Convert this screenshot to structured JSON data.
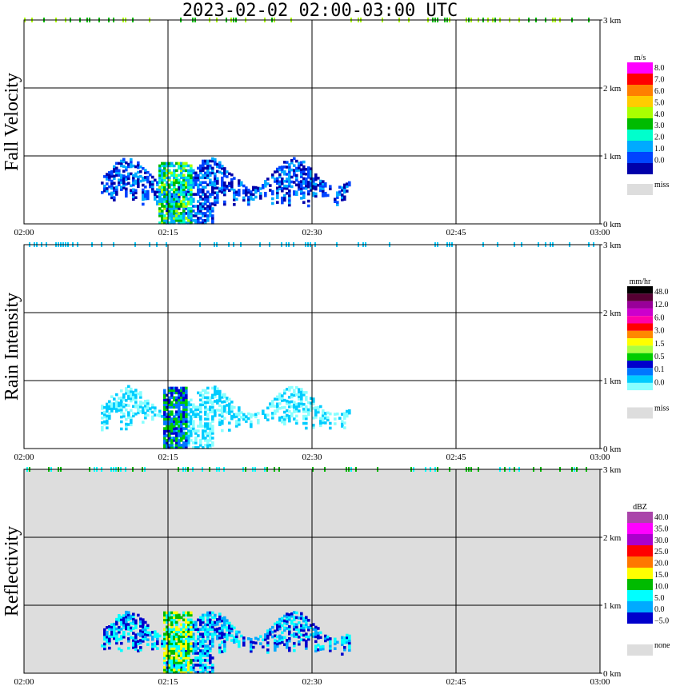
{
  "title": "2023-02-02   02:00-03:00 UTC",
  "colors": {
    "frame": "#000000",
    "missing": "#dddddd"
  },
  "chart_data": [
    {
      "type": "heatmap",
      "title": "",
      "ylabel": "Fall Velocity",
      "x_ticks": [
        "02:00",
        "02:15",
        "02:30",
        "02:45",
        "03:00"
      ],
      "x_range_min": [
        0,
        60
      ],
      "y_ticks": [
        "0 km",
        "1 km",
        "2 km",
        "3 km"
      ],
      "y_range_km": [
        0,
        3
      ],
      "grid": true,
      "background": "white",
      "legend": {
        "unit": "m/s",
        "labels": [
          "8.0",
          "7.0",
          "6.0",
          "5.0",
          "4.0",
          "3.0",
          "2.0",
          "1.0",
          "0.0"
        ],
        "colors": [
          "#ff00ff",
          "#ff0000",
          "#ff7f00",
          "#ffcc00",
          "#aaff00",
          "#00bb00",
          "#00ffcc",
          "#00aaff",
          "#0044ff",
          "#0000aa"
        ],
        "missing_label": "miss"
      },
      "features": [
        {
          "type": "echo_blob",
          "t": [
            8.0,
            34.0
          ],
          "h": [
            0.0,
            0.95
          ],
          "palette": [
            7,
            8,
            9
          ],
          "density": 0.65
        },
        {
          "type": "echo_core",
          "t": [
            14.0,
            17.5
          ],
          "h": [
            0.0,
            0.9
          ],
          "palette": [
            4,
            5,
            6,
            7
          ],
          "density": 0.8
        },
        {
          "type": "echo_line",
          "t": [
            0.0,
            60.0
          ],
          "h": 3.0,
          "palette": [
            4,
            5
          ],
          "density": 0.25
        }
      ]
    },
    {
      "type": "heatmap",
      "title": "",
      "ylabel": "Rain Intensity",
      "x_ticks": [
        "02:00",
        "02:15",
        "02:30",
        "02:45",
        "03:00"
      ],
      "x_range_min": [
        0,
        60
      ],
      "y_ticks": [
        "0 km",
        "1 km",
        "2 km",
        "3 km"
      ],
      "y_range_km": [
        0,
        3
      ],
      "grid": true,
      "background": "white",
      "legend": {
        "unit": "mm/hr",
        "labels": [
          "48.0",
          "12.0",
          "6.0",
          "3.0",
          "1.5",
          "0.5",
          "0.1",
          "0.0"
        ],
        "colors": [
          "#000000",
          "#550033",
          "#990099",
          "#cc00cc",
          "#ff00aa",
          "#ff0000",
          "#ff8800",
          "#ffff00",
          "#aaff44",
          "#00cc00",
          "#0000cc",
          "#0077ff",
          "#00ccff",
          "#88ffff",
          "#ffffff"
        ],
        "missing_label": "miss"
      },
      "features": [
        {
          "type": "echo_blob",
          "t": [
            8.0,
            34.0
          ],
          "h": [
            0.0,
            0.9
          ],
          "palette": [
            12,
            13
          ],
          "density": 0.6
        },
        {
          "type": "echo_core",
          "t": [
            14.5,
            17.0
          ],
          "h": [
            0.0,
            0.9
          ],
          "palette": [
            9,
            10,
            11
          ],
          "density": 0.8
        },
        {
          "type": "echo_line",
          "t": [
            0.0,
            60.0
          ],
          "h": 3.0,
          "palette": [
            12
          ],
          "density": 0.25
        }
      ]
    },
    {
      "type": "heatmap",
      "title": "",
      "ylabel": "Reflectivity",
      "x_ticks": [
        "02:00",
        "02:15",
        "02:30",
        "02:45",
        "03:00"
      ],
      "x_range_min": [
        0,
        60
      ],
      "y_ticks": [
        "0 km",
        "1 km",
        "2 km",
        "3 km"
      ],
      "y_range_km": [
        0,
        3
      ],
      "grid": true,
      "background": "gray",
      "legend": {
        "unit": "dBZ",
        "labels": [
          "40.0",
          "35.0",
          "30.0",
          "25.0",
          "20.0",
          "15.0",
          "10.0",
          "5.0",
          "0.0",
          "−5.0"
        ],
        "colors": [
          "#aa44aa",
          "#ff00ff",
          "#aa00cc",
          "#ff0000",
          "#ff7700",
          "#ffff00",
          "#00bb00",
          "#00ffff",
          "#00aaff",
          "#0000cc",
          "#ffffff"
        ],
        "missing_label": "none"
      },
      "features": [
        {
          "type": "echo_blob",
          "t": [
            8.0,
            34.0
          ],
          "h": [
            0.0,
            0.9
          ],
          "palette": [
            7,
            8,
            9
          ],
          "density": 0.65
        },
        {
          "type": "echo_core",
          "t": [
            14.5,
            17.5
          ],
          "h": [
            0.0,
            0.9
          ],
          "palette": [
            5,
            6,
            7
          ],
          "density": 0.8
        },
        {
          "type": "echo_line",
          "t": [
            0.0,
            60.0
          ],
          "h": 3.0,
          "palette": [
            6,
            7
          ],
          "density": 0.25
        }
      ]
    }
  ]
}
